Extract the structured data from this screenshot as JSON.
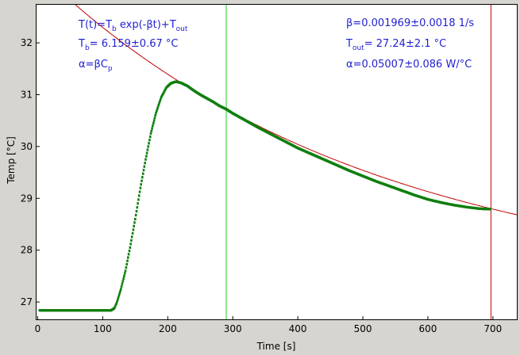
{
  "chart_data": {
    "type": "scatter",
    "title": "",
    "xlabel": "Time [s]",
    "ylabel": "Temp [°C]",
    "xlim": [
      -3,
      738
    ],
    "ylim": [
      26.65,
      32.75
    ],
    "xticks": [
      0,
      100,
      200,
      300,
      400,
      500,
      600,
      700
    ],
    "yticks": [
      27,
      28,
      29,
      30,
      31,
      32
    ],
    "grid": false,
    "colors": {
      "measured": "#0f7f0f",
      "fit": "#c00000",
      "cursor_left": "#22cc22",
      "cursor_right": "#c00000",
      "annotation": "#1f1fd0",
      "plot_background": "#ffffff",
      "window_background": "#d6d5d0"
    },
    "series": [
      {
        "kind": "measured",
        "points": [
          [
            3,
            26.84
          ],
          [
            20,
            26.84
          ],
          [
            40,
            26.84
          ],
          [
            60,
            26.84
          ],
          [
            80,
            26.84
          ],
          [
            100,
            26.84
          ],
          [
            113,
            26.84
          ],
          [
            118,
            26.88
          ],
          [
            122,
            27.0
          ],
          [
            128,
            27.25
          ],
          [
            135,
            27.6
          ],
          [
            142,
            28.05
          ],
          [
            150,
            28.6
          ],
          [
            158,
            29.2
          ],
          [
            166,
            29.75
          ],
          [
            174,
            30.25
          ],
          [
            182,
            30.65
          ],
          [
            190,
            30.95
          ],
          [
            198,
            31.14
          ],
          [
            205,
            31.22
          ],
          [
            212,
            31.25
          ],
          [
            220,
            31.23
          ],
          [
            230,
            31.17
          ],
          [
            240,
            31.08
          ],
          [
            250,
            31.0
          ],
          [
            260,
            30.93
          ],
          [
            270,
            30.86
          ],
          [
            280,
            30.78
          ],
          [
            290,
            30.72
          ],
          [
            300,
            30.64
          ],
          [
            320,
            30.5
          ],
          [
            340,
            30.36
          ],
          [
            360,
            30.23
          ],
          [
            380,
            30.1
          ],
          [
            400,
            29.97
          ],
          [
            420,
            29.86
          ],
          [
            440,
            29.75
          ],
          [
            460,
            29.64
          ],
          [
            480,
            29.53
          ],
          [
            500,
            29.43
          ],
          [
            520,
            29.33
          ],
          [
            540,
            29.24
          ],
          [
            560,
            29.15
          ],
          [
            580,
            29.06
          ],
          [
            600,
            28.98
          ],
          [
            620,
            28.92
          ],
          [
            640,
            28.87
          ],
          [
            660,
            28.83
          ],
          [
            680,
            28.8
          ],
          [
            697,
            28.79
          ]
        ]
      },
      {
        "kind": "fit",
        "formula_params": {
          "Tb": 6.159,
          "beta": 0.001969,
          "Tout": 27.24
        },
        "x_range": [
          -3,
          738
        ]
      }
    ],
    "cursors": [
      {
        "kind": "left",
        "x": 290
      },
      {
        "kind": "right",
        "x": 697
      }
    ]
  },
  "annotations": {
    "formula": {
      "a": "T(t)=T",
      "a_sub": "b",
      "b": " exp(-βt)+T",
      "b_sub": "out"
    },
    "tb": {
      "a": "T",
      "a_sub": "b",
      "b": "= 6.159±0.67 °C"
    },
    "alpha_def": {
      "a": "α=βC",
      "a_sub": "p"
    },
    "beta": "β=0.001969±0.0018 1/s",
    "tout": {
      "a": "T",
      "a_sub": "out",
      "b": "= 27.24±2.1 °C"
    },
    "alpha_val": "α=0.05007±0.086 W/°C"
  }
}
